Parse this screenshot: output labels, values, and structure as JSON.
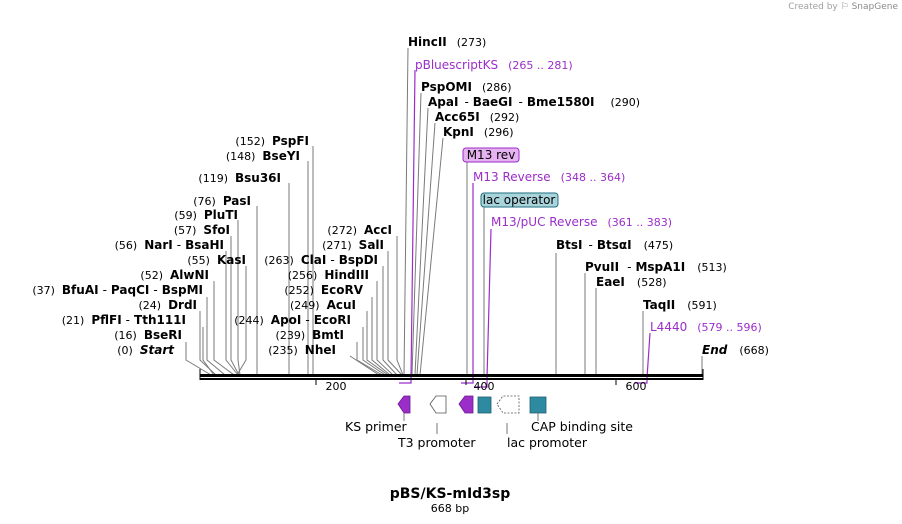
{
  "watermark": {
    "prefix": "Created by",
    "brand": "SnapGene",
    "logo_icon": "snapgene-logo-icon"
  },
  "map": {
    "name": "pBS/KS-mId3sp",
    "length_text": "668 bp",
    "start_label": "Start",
    "start_pos": "(0)",
    "end_label": "End",
    "end_pos": "(668)",
    "scale_labels": [
      "200",
      "400",
      "600"
    ]
  },
  "enzymes_left": [
    {
      "pos": "(152)",
      "name": "PspFI"
    },
    {
      "pos": "(148)",
      "name": "BseYI"
    },
    {
      "pos": "(119)",
      "name": "Bsu36I"
    },
    {
      "pos": "(76)",
      "name": "PasI"
    },
    {
      "pos": "(59)",
      "name": "PluTI"
    },
    {
      "pos": "(57)",
      "name": "SfoI"
    },
    {
      "pos": "(56)",
      "name": "NarI",
      "name2": "BsaHI"
    },
    {
      "pos": "(55)",
      "name": "KasI"
    },
    {
      "pos": "(52)",
      "name": "AlwNI"
    },
    {
      "pos": "(37)",
      "name": "BfuAI",
      "name2": "PaqCI",
      "name3": "BspMI"
    },
    {
      "pos": "(24)",
      "name": "DrdI"
    },
    {
      "pos": "(21)",
      "name": "PflFI",
      "name2": "Tth111I"
    },
    {
      "pos": "(16)",
      "name": "BseRI"
    }
  ],
  "enzymes_mid": [
    {
      "pos": "(272)",
      "name": "AccI"
    },
    {
      "pos": "(271)",
      "name": "SalI"
    },
    {
      "pos": "(263)",
      "name": "ClaI",
      "name2": "BspDI"
    },
    {
      "pos": "(256)",
      "name": "HindIII"
    },
    {
      "pos": "(252)",
      "name": "EcoRV"
    },
    {
      "pos": "(249)",
      "name": "AcuI"
    },
    {
      "pos": "(244)",
      "name": "ApoI",
      "name2": "EcoRI"
    },
    {
      "pos": "(239)",
      "name": "BmtI"
    },
    {
      "pos": "(235)",
      "name": "NheI"
    }
  ],
  "enzymes_top": [
    {
      "name": "HincII",
      "pos": "(273)"
    },
    {
      "name": "PspOMI",
      "pos": "(286)"
    },
    {
      "name": "ApaI",
      "name2": "BaeGI",
      "name3": "Bme1580I",
      "pos": "(290)"
    },
    {
      "name": "Acc65I",
      "pos": "(292)"
    },
    {
      "name": "KpnI",
      "pos": "(296)"
    }
  ],
  "enzymes_right": [
    {
      "name": "BtsI",
      "name2": "BtsαI",
      "pos": "(475)"
    },
    {
      "name": "PvuII",
      "name2": "MspA1I",
      "pos": "(513)"
    },
    {
      "name": "EaeI",
      "pos": "(528)"
    },
    {
      "name": "TaqII",
      "pos": "(591)"
    }
  ],
  "primers": [
    {
      "name": "pBluescriptKS",
      "range": "(265 .. 281)"
    },
    {
      "name": "M13 Reverse",
      "range": "(348 .. 364)"
    },
    {
      "name": "M13/pUC Reverse",
      "range": "(361 .. 383)"
    },
    {
      "name": "L4440",
      "range": "(579 .. 596)"
    }
  ],
  "boxed_features": [
    {
      "name": "M13 rev",
      "color": "#e6b3f0",
      "border": "#9b2dc9"
    },
    {
      "name": "lac operator",
      "color": "#a9d4dc",
      "border": "#1f6f7f"
    }
  ],
  "features": [
    {
      "name": "KS primer",
      "color": "#9b2dc9"
    },
    {
      "name": "T3 promoter",
      "color": "#ffffff"
    },
    {
      "name": "lac promoter",
      "color": "#ffffff"
    },
    {
      "name": "CAP binding site",
      "color": "#2e8aa0"
    }
  ],
  "colors": {
    "primer": "#9b2dc9",
    "feature_teal": "#2e8aa0",
    "backbone": "#000000",
    "leader": "#7a7a7a"
  }
}
